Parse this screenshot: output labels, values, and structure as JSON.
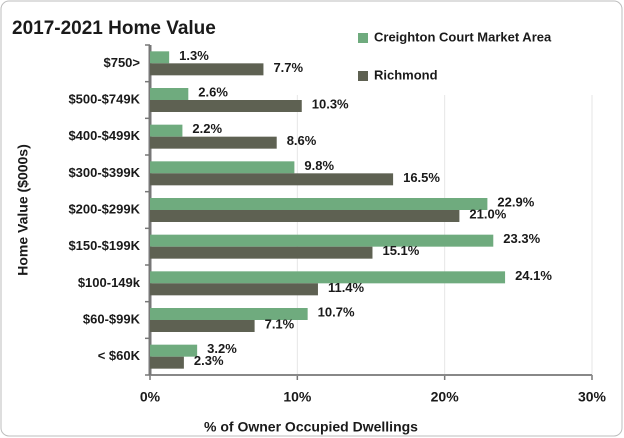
{
  "chart_data": {
    "type": "barh",
    "title": "2017-2021 Home Value",
    "xlabel": "% of Owner Occupied Dwellings",
    "ylabel": "Home Value ($000s)",
    "categories": [
      "$750>",
      "$500-$749K",
      "$400-$499K",
      "$300-$399K",
      "$200-$299K",
      "$150-$199K",
      "$100-149k",
      "$60-$99K",
      "< $60K"
    ],
    "series": [
      {
        "name": "Creighton Court Market Area",
        "color": "#6fab7e",
        "values": [
          1.3,
          2.6,
          2.2,
          9.8,
          22.9,
          23.3,
          24.1,
          10.7,
          3.2
        ],
        "value_labels": [
          "1.3%",
          "2.6%",
          "2.2%",
          "9.8%",
          "22.9%",
          "23.3%",
          "24.1%",
          "10.7%",
          "3.2%"
        ]
      },
      {
        "name": "Richmond",
        "color": "#5e6152",
        "values": [
          7.7,
          10.3,
          8.6,
          16.5,
          21.0,
          15.1,
          11.4,
          7.1,
          2.3
        ],
        "value_labels": [
          "7.7%",
          "10.3%",
          "8.6%",
          "16.5%",
          "21.0%",
          "15.1%",
          "11.4%",
          "7.1%",
          "2.3%"
        ]
      }
    ],
    "xlim": [
      0,
      30
    ],
    "xticks": [
      {
        "value": 0,
        "label": "0%"
      },
      {
        "value": 10,
        "label": "10%"
      },
      {
        "value": 20,
        "label": "20%"
      },
      {
        "value": 30,
        "label": "30%"
      }
    ],
    "grid": true,
    "legend": "upper right"
  }
}
